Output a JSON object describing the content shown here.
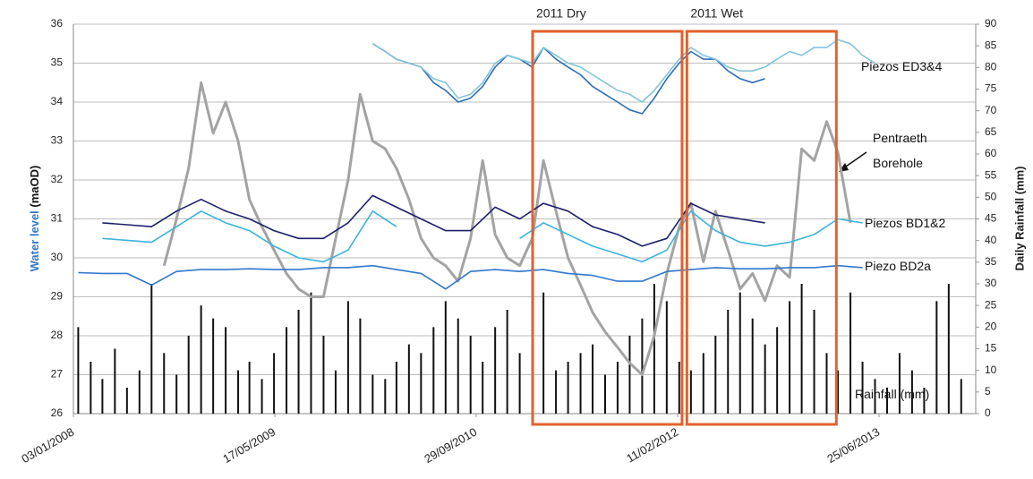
{
  "chart_data": {
    "type": "line",
    "ylabel": [
      "Water level",
      "(maOD)"
    ],
    "y2label": "Daily Rainfall (mm)",
    "xlim": [
      "2008-01-03",
      "2014-02-20"
    ],
    "xticks": [
      {
        "value": "2008-01-03",
        "label": "03/01/2008"
      },
      {
        "value": "2009-05-17",
        "label": "17/05/2009"
      },
      {
        "value": "2010-09-29",
        "label": "29/09/2010"
      },
      {
        "value": "2012-02-11",
        "label": "11/02/2012"
      },
      {
        "value": "2013-06-25",
        "label": "25/06/2013"
      }
    ],
    "ylim": [
      26,
      36
    ],
    "yticks": [
      26,
      27,
      28,
      29,
      30,
      31,
      32,
      33,
      34,
      35,
      36
    ],
    "y2lim": [
      0,
      90
    ],
    "y2ticks": [
      0,
      5,
      10,
      15,
      20,
      25,
      30,
      35,
      40,
      45,
      50,
      55,
      60,
      65,
      70,
      75,
      80,
      85,
      90
    ],
    "grid": true,
    "annotations": [
      {
        "label": "2011 Dry",
        "x": [
          "2011-02-16",
          "2012-02-22"
        ]
      },
      {
        "label": "2011 Wet",
        "x": [
          "2012-03-05",
          "2013-03-11"
        ]
      }
    ],
    "series": [
      {
        "name": "Piezos ED3&4",
        "color": "#2e6db4",
        "x": [
          "2010-01-15",
          "2010-02-15",
          "2010-03-15",
          "2010-04-15",
          "2010-05-15",
          "2010-06-15",
          "2010-07-15",
          "2010-08-15",
          "2010-09-15",
          "2010-10-15",
          "2010-11-15",
          "2010-12-15",
          "2011-01-15",
          "2011-02-15",
          "2011-03-15",
          "2011-04-15",
          "2011-05-15",
          "2011-06-15",
          "2011-07-15",
          "2011-08-15",
          "2011-09-15",
          "2011-10-15",
          "2011-11-15",
          "2011-12-15",
          "2012-01-15",
          "2012-02-15",
          "2012-03-15",
          "2012-04-15",
          "2012-05-15",
          "2012-06-15",
          "2012-07-15",
          "2012-08-15",
          "2012-09-15"
        ],
        "values": [
          35.5,
          35.3,
          35.1,
          35.0,
          34.9,
          34.5,
          34.3,
          34.0,
          34.1,
          34.4,
          34.9,
          35.2,
          35.1,
          34.9,
          35.4,
          35.1,
          34.9,
          34.7,
          34.4,
          34.2,
          34.0,
          33.8,
          33.7,
          34.1,
          34.6,
          35.0,
          35.3,
          35.1,
          35.1,
          34.8,
          34.6,
          34.5,
          34.6
        ]
      },
      {
        "color": "#82c3d8",
        "x": [
          "2010-01-15",
          "2010-02-15",
          "2010-03-15",
          "2010-04-15",
          "2010-05-15",
          "2010-06-15",
          "2010-07-15",
          "2010-08-15",
          "2010-09-15",
          "2010-10-15",
          "2010-11-15",
          "2010-12-15",
          "2011-01-15",
          "2011-02-15",
          "2011-03-15",
          "2011-04-15",
          "2011-05-15",
          "2011-06-15",
          "2011-07-15",
          "2011-08-15",
          "2011-09-15",
          "2011-10-15",
          "2011-11-15",
          "2011-12-15",
          "2012-01-15",
          "2012-02-15",
          "2012-03-15",
          "2012-04-15",
          "2012-05-15",
          "2012-06-15",
          "2012-07-15",
          "2012-08-15",
          "2012-09-15",
          "2012-10-15",
          "2012-11-15",
          "2012-12-15",
          "2013-01-15",
          "2013-02-15",
          "2013-03-15",
          "2013-04-15",
          "2013-05-15",
          "2013-06-15"
        ],
        "values": [
          35.5,
          35.3,
          35.1,
          35.0,
          34.9,
          34.6,
          34.5,
          34.1,
          34.2,
          34.5,
          35.0,
          35.2,
          35.1,
          35.0,
          35.4,
          35.2,
          35.0,
          34.9,
          34.7,
          34.5,
          34.3,
          34.2,
          34.0,
          34.3,
          34.7,
          35.1,
          35.4,
          35.2,
          35.1,
          34.9,
          34.8,
          34.8,
          34.9,
          35.1,
          35.3,
          35.2,
          35.4,
          35.4,
          35.6,
          35.5,
          35.2,
          35.0
        ]
      },
      {
        "name": "Pentraeth Borehole",
        "color": "#a3a3a3",
        "x": [
          "2008-08-15",
          "2008-09-15",
          "2008-10-15",
          "2008-11-15",
          "2008-12-15",
          "2009-01-15",
          "2009-02-15",
          "2009-03-15",
          "2009-04-15",
          "2009-05-15",
          "2009-06-15",
          "2009-07-15",
          "2009-08-15",
          "2009-09-15",
          "2009-10-15",
          "2009-11-15",
          "2009-12-15",
          "2010-01-15",
          "2010-02-15",
          "2010-03-15",
          "2010-04-15",
          "2010-05-15",
          "2010-06-15",
          "2010-07-15",
          "2010-08-15",
          "2010-09-15",
          "2010-10-15",
          "2010-11-15",
          "2010-12-15",
          "2011-01-15",
          "2011-02-15",
          "2011-03-15",
          "2011-04-15",
          "2011-05-15",
          "2011-06-15",
          "2011-07-15",
          "2011-08-15",
          "2011-09-15",
          "2011-10-15",
          "2011-11-15",
          "2011-12-15",
          "2012-01-15",
          "2012-02-15",
          "2012-03-15",
          "2012-04-15",
          "2012-05-15",
          "2012-06-15",
          "2012-07-15",
          "2012-08-15",
          "2012-09-15",
          "2012-10-15",
          "2012-11-15",
          "2012-12-15",
          "2013-01-15",
          "2013-02-15",
          "2013-03-15",
          "2013-04-15"
        ],
        "values": [
          29.8,
          31.0,
          32.3,
          34.5,
          33.2,
          34.0,
          33.0,
          31.5,
          30.8,
          30.2,
          29.6,
          29.2,
          29.0,
          29.0,
          30.5,
          32.0,
          34.2,
          33.0,
          32.8,
          32.3,
          31.5,
          30.5,
          30.0,
          29.8,
          29.4,
          30.5,
          32.5,
          30.6,
          30.0,
          29.8,
          30.5,
          32.5,
          31.2,
          30.0,
          29.3,
          28.6,
          28.1,
          27.7,
          27.3,
          27.0,
          28.0,
          29.6,
          30.8,
          31.4,
          29.9,
          31.2,
          30.2,
          29.2,
          29.6,
          28.9,
          29.8,
          29.5,
          32.8,
          32.5,
          33.5,
          32.7,
          30.9
        ]
      },
      {
        "name": "Piezos BD1&2",
        "color": "#1c1f6b",
        "x": [
          "2008-03-15",
          "2008-05-15",
          "2008-07-15",
          "2008-09-15",
          "2008-11-15",
          "2009-01-15",
          "2009-03-15",
          "2009-05-15",
          "2009-07-15",
          "2009-09-15",
          "2009-11-15",
          "2010-01-15",
          "2010-03-15",
          "2010-05-15",
          "2010-07-15",
          "2010-09-15",
          "2010-11-15",
          "2011-01-15",
          "2011-03-15",
          "2011-05-15",
          "2011-07-15",
          "2011-09-15",
          "2011-11-15",
          "2012-01-15",
          "2012-03-15",
          "2012-05-15",
          "2012-07-15",
          "2012-09-15"
        ],
        "values": [
          30.9,
          30.85,
          30.8,
          31.2,
          31.5,
          31.2,
          31.0,
          30.7,
          30.5,
          30.5,
          30.9,
          31.6,
          31.3,
          31.0,
          30.7,
          30.7,
          31.3,
          31.0,
          31.4,
          31.2,
          30.8,
          30.6,
          30.3,
          30.5,
          31.4,
          31.1,
          31.0,
          30.9
        ]
      },
      {
        "color": "#3db3dd",
        "x": [
          "2008-03-15",
          "2008-05-15",
          "2008-07-15",
          "2008-09-15",
          "2008-11-15",
          "2009-01-15",
          "2009-03-15",
          "2009-05-15",
          "2009-07-15",
          "2009-09-15",
          "2009-11-15",
          "2010-01-15",
          "2010-03-15",
          "2010-05-15",
          "2010-07-15",
          "2010-09-15",
          "2010-11-15",
          "2011-01-15",
          "2011-03-15",
          "2011-05-15",
          "2011-07-15",
          "2011-09-15",
          "2011-11-15",
          "2012-01-15",
          "2012-03-15",
          "2012-05-15",
          "2012-07-15",
          "2012-09-15",
          "2012-11-15",
          "2013-01-15",
          "2013-03-15",
          "2013-05-15"
        ],
        "values": [
          30.5,
          30.45,
          30.4,
          30.8,
          31.2,
          30.9,
          30.7,
          30.3,
          30.0,
          29.9,
          30.2,
          31.2,
          30.8,
          null,
          null,
          null,
          null,
          30.5,
          30.9,
          30.6,
          30.3,
          30.1,
          29.9,
          30.2,
          31.2,
          30.7,
          30.4,
          30.3,
          30.4,
          30.6,
          31.0,
          30.9
        ]
      },
      {
        "name": "Piezo BD2a",
        "color": "#2f78cc",
        "x": [
          "2008-01-15",
          "2008-03-15",
          "2008-05-15",
          "2008-07-15",
          "2008-09-15",
          "2008-11-15",
          "2009-01-15",
          "2009-03-15",
          "2009-05-15",
          "2009-07-15",
          "2009-09-15",
          "2009-11-15",
          "2010-01-15",
          "2010-03-15",
          "2010-05-15",
          "2010-07-15",
          "2010-09-15",
          "2010-11-15",
          "2011-01-15",
          "2011-03-15",
          "2011-05-15",
          "2011-07-15",
          "2011-09-15",
          "2011-11-15",
          "2012-01-15",
          "2012-03-15",
          "2012-05-15",
          "2012-07-15",
          "2012-09-15",
          "2012-11-15",
          "2013-01-15",
          "2013-03-15",
          "2013-05-15"
        ],
        "values": [
          29.62,
          29.6,
          29.6,
          29.3,
          29.65,
          29.7,
          29.7,
          29.72,
          29.7,
          29.7,
          29.75,
          29.75,
          29.8,
          29.7,
          29.6,
          29.2,
          29.65,
          29.7,
          29.65,
          29.7,
          29.6,
          29.55,
          29.4,
          29.4,
          29.65,
          29.7,
          29.75,
          29.72,
          29.72,
          29.75,
          29.75,
          29.8,
          29.75
        ]
      },
      {
        "name": "Rainfall (mm)",
        "color": "#111111",
        "type": "bar",
        "axis": "y2",
        "x": [
          "2008-01-15",
          "2008-02-15",
          "2008-03-15",
          "2008-04-15",
          "2008-05-15",
          "2008-06-15",
          "2008-07-15",
          "2008-08-15",
          "2008-09-15",
          "2008-10-15",
          "2008-11-15",
          "2008-12-15",
          "2009-01-15",
          "2009-02-15",
          "2009-03-15",
          "2009-04-15",
          "2009-05-15",
          "2009-06-15",
          "2009-07-15",
          "2009-08-15",
          "2009-09-15",
          "2009-10-15",
          "2009-11-15",
          "2009-12-15",
          "2010-01-15",
          "2010-02-15",
          "2010-03-15",
          "2010-04-15",
          "2010-05-15",
          "2010-06-15",
          "2010-07-15",
          "2010-08-15",
          "2010-09-15",
          "2010-10-15",
          "2010-11-15",
          "2010-12-15",
          "2011-01-15",
          "2011-02-15",
          "2011-03-15",
          "2011-04-15",
          "2011-05-15",
          "2011-06-15",
          "2011-07-15",
          "2011-08-15",
          "2011-09-15",
          "2011-10-15",
          "2011-11-15",
          "2011-12-15",
          "2012-01-15",
          "2012-02-15",
          "2012-03-15",
          "2012-04-15",
          "2012-05-15",
          "2012-06-15",
          "2012-07-15",
          "2012-08-15",
          "2012-09-15",
          "2012-10-15",
          "2012-11-15",
          "2012-12-15",
          "2013-01-15",
          "2013-02-15",
          "2013-03-15",
          "2013-04-15",
          "2013-05-15",
          "2013-06-15",
          "2013-07-15",
          "2013-08-15",
          "2013-09-15",
          "2013-10-15",
          "2013-11-15",
          "2013-12-15",
          "2014-01-15"
        ],
        "values": [
          20,
          12,
          8,
          15,
          6,
          10,
          30,
          14,
          9,
          18,
          25,
          22,
          20,
          10,
          12,
          8,
          14,
          20,
          24,
          28,
          18,
          10,
          26,
          22,
          9,
          8,
          12,
          16,
          14,
          20,
          26,
          22,
          18,
          12,
          20,
          24,
          14,
          8,
          28,
          10,
          12,
          14,
          16,
          9,
          12,
          18,
          22,
          30,
          26,
          12,
          10,
          14,
          18,
          24,
          28,
          22,
          16,
          20,
          26,
          30,
          24,
          14,
          10,
          28,
          12,
          8,
          6,
          14,
          10,
          6,
          26,
          30,
          8
        ]
      }
    ]
  }
}
